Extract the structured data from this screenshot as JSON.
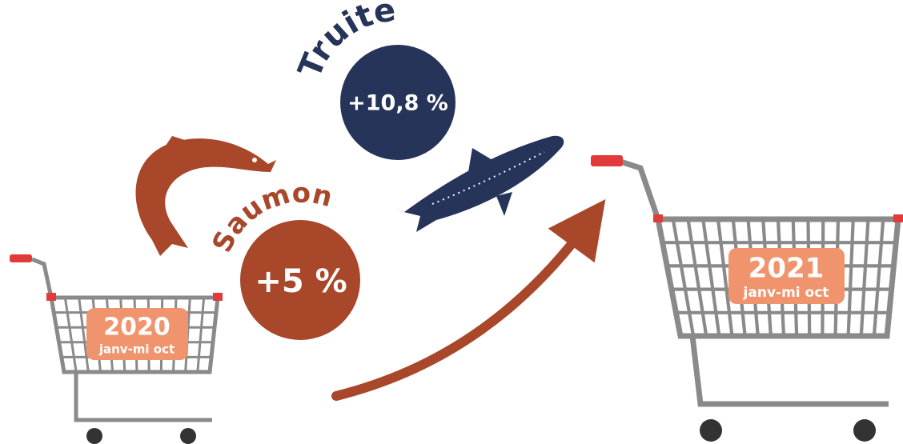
{
  "fish": [
    {
      "name": "Truite",
      "change": "+10,8 %"
    },
    {
      "name": "Saumon",
      "change": "+5 %"
    }
  ],
  "carts": [
    {
      "year": "2020",
      "period": "janv-mi oct"
    },
    {
      "year": "2021",
      "period": "janv-mi oct"
    }
  ]
}
